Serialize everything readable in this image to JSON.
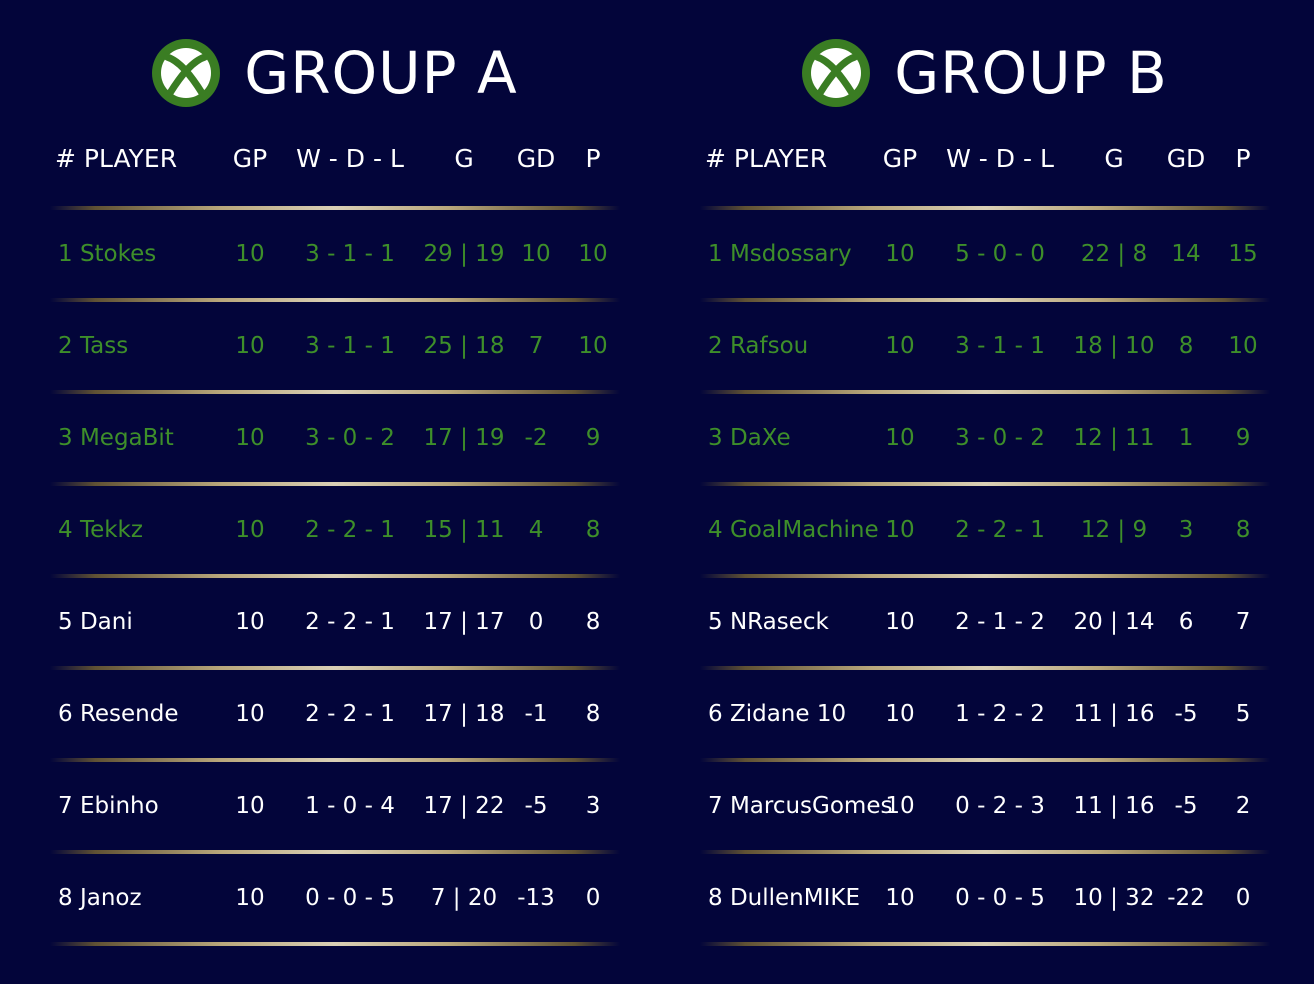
{
  "columns": {
    "player": "# PLAYER",
    "gp": "GP",
    "wdl": "W - D - L",
    "g": "G",
    "gd": "GD",
    "p": "P"
  },
  "colors": {
    "background": "#03053a",
    "qualified": "#3e8f2a",
    "normal": "#ffffff",
    "divider_gold": "#d8c48f",
    "xbox_green": "#3a7d23"
  },
  "icon": "xbox-logo-icon",
  "groups": [
    {
      "title": "GROUP A",
      "rows": [
        {
          "player": "1 Stokes",
          "gp": "10",
          "wdl": "3 - 1 - 1",
          "g": "29 | 19",
          "gd": "10",
          "p": "10",
          "qualified": true
        },
        {
          "player": "2 Tass",
          "gp": "10",
          "wdl": "3 - 1 - 1",
          "g": "25 | 18",
          "gd": "7",
          "p": "10",
          "qualified": true
        },
        {
          "player": "3 MegaBit",
          "gp": "10",
          "wdl": "3 - 0 - 2",
          "g": "17 | 19",
          "gd": "-2",
          "p": "9",
          "qualified": true
        },
        {
          "player": "4 Tekkz",
          "gp": "10",
          "wdl": "2 - 2 - 1",
          "g": "15 | 11",
          "gd": "4",
          "p": "8",
          "qualified": true
        },
        {
          "player": "5 Dani",
          "gp": "10",
          "wdl": "2 - 2 - 1",
          "g": "17 | 17",
          "gd": "0",
          "p": "8",
          "qualified": false
        },
        {
          "player": "6 Resende",
          "gp": "10",
          "wdl": "2 - 2 - 1",
          "g": "17 | 18",
          "gd": "-1",
          "p": "8",
          "qualified": false
        },
        {
          "player": "7 Ebinho",
          "gp": "10",
          "wdl": "1 - 0 - 4",
          "g": "17 | 22",
          "gd": "-5",
          "p": "3",
          "qualified": false
        },
        {
          "player": "8 Janoz",
          "gp": "10",
          "wdl": "0 - 0 - 5",
          "g": "7 | 20",
          "gd": "-13",
          "p": "0",
          "qualified": false
        }
      ]
    },
    {
      "title": "GROUP B",
      "rows": [
        {
          "player": "1 Msdossary",
          "gp": "10",
          "wdl": "5 - 0 - 0",
          "g": "22 | 8",
          "gd": "14",
          "p": "15",
          "qualified": true
        },
        {
          "player": "2 Rafsou",
          "gp": "10",
          "wdl": "3 - 1 - 1",
          "g": "18 | 10",
          "gd": "8",
          "p": "10",
          "qualified": true
        },
        {
          "player": "3 DaXe",
          "gp": "10",
          "wdl": "3 - 0 - 2",
          "g": "12 | 11",
          "gd": "1",
          "p": "9",
          "qualified": true
        },
        {
          "player": "4 GoalMachine",
          "gp": "10",
          "wdl": "2 - 2 - 1",
          "g": "12 | 9",
          "gd": "3",
          "p": "8",
          "qualified": true
        },
        {
          "player": "5 NRaseck",
          "gp": "10",
          "wdl": "2 - 1 - 2",
          "g": "20 | 14",
          "gd": "6",
          "p": "7",
          "qualified": false
        },
        {
          "player": "6 Zidane 10",
          "gp": "10",
          "wdl": "1 - 2 - 2",
          "g": "11 | 16",
          "gd": "-5",
          "p": "5",
          "qualified": false
        },
        {
          "player": "7 MarcusGomes",
          "gp": "10",
          "wdl": "0 - 2 - 3",
          "g": "11 | 16",
          "gd": "-5",
          "p": "2",
          "qualified": false
        },
        {
          "player": "8 DullenMIKE",
          "gp": "10",
          "wdl": "0 - 0 - 5",
          "g": "10 | 32",
          "gd": "-22",
          "p": "0",
          "qualified": false
        }
      ]
    }
  ]
}
